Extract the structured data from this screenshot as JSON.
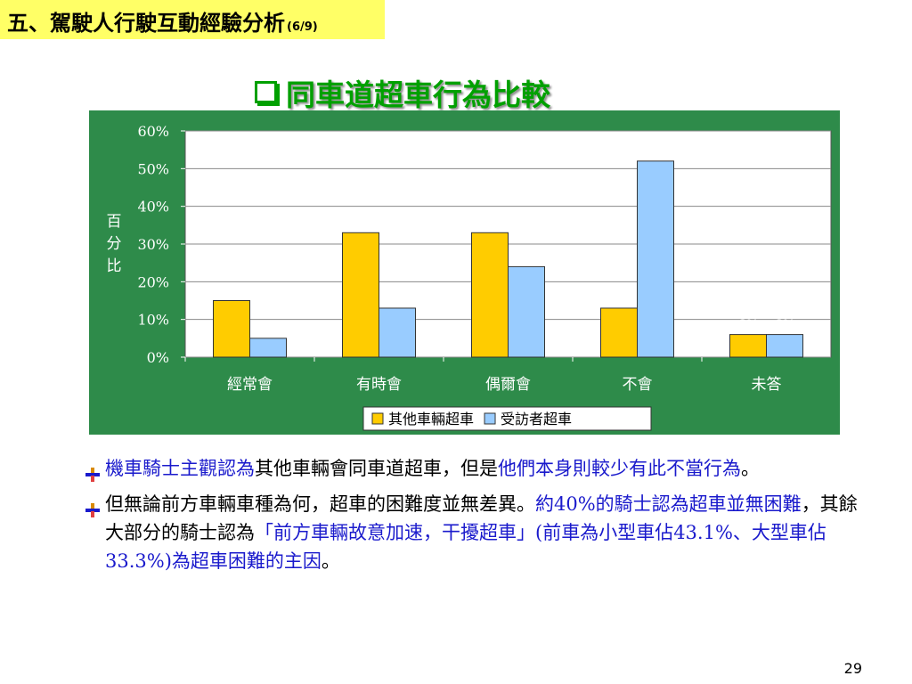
{
  "header": {
    "section_title": "五、駕駛人行駛互動經驗分析",
    "page_fraction": "(6/9)"
  },
  "slide": {
    "title": "同車道超車行為比較",
    "page_number": "29"
  },
  "chart_data": {
    "type": "bar",
    "categories": [
      "經常會",
      "有時會",
      "偶爾會",
      "不會",
      "未答"
    ],
    "series": [
      {
        "name": "其他車輛超車",
        "values": [
          15,
          33,
          33,
          13,
          6
        ],
        "labels": [
          "15%",
          "33%",
          "33%",
          "13%",
          "6%"
        ],
        "color": "#ffcc00"
      },
      {
        "name": "受訪者超車",
        "values": [
          5,
          13,
          24,
          52,
          6
        ],
        "labels": [
          "5%",
          "13%",
          "24%",
          "52%",
          "6%"
        ],
        "color": "#99ccff"
      }
    ],
    "ylabel": [
      "百",
      "分",
      "比"
    ],
    "ylim": [
      0,
      60
    ],
    "yticks": [
      0,
      10,
      20,
      30,
      40,
      50,
      60
    ],
    "ytick_labels": [
      "0%",
      "10%",
      "20%",
      "30%",
      "40%",
      "50%",
      "60%"
    ],
    "background": "#2e8b4a",
    "grid": true,
    "legend": "bottom"
  },
  "bullets": [
    {
      "segments": [
        {
          "text": "機車騎士主觀認為",
          "hl": true
        },
        {
          "text": "其他車輛會同車道超車，但是",
          "hl": false
        },
        {
          "text": "他們本身則較少有此不當行為",
          "hl": true
        },
        {
          "text": "。",
          "hl": false
        }
      ]
    },
    {
      "segments": [
        {
          "text": "但無論前方車輛車種為何，超車的困難度並無差異。",
          "hl": false
        },
        {
          "text": "約40%的騎士認為超車並無困難",
          "hl": true
        },
        {
          "text": "，其餘大部分的騎士認為",
          "hl": false
        },
        {
          "text": "「前方車輛故意加速，干擾超車」(前車為小型車佔43.1%、大型車佔33.3%)為超車困難的主因",
          "hl": true
        },
        {
          "text": "。",
          "hl": false
        }
      ]
    }
  ]
}
